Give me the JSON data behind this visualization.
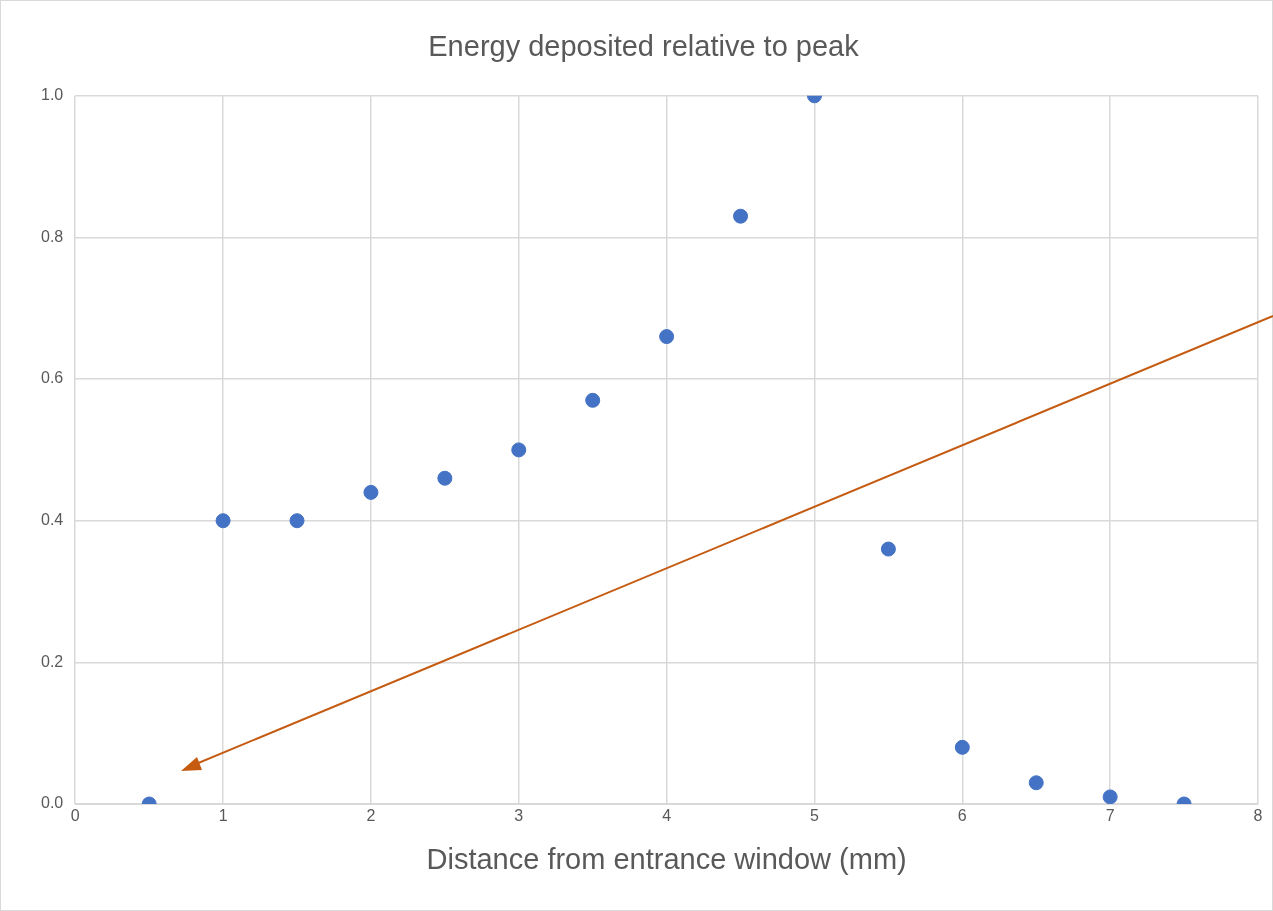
{
  "chart_data": {
    "type": "scatter",
    "title": "Energy deposited relative to peak",
    "xlabel": "Distance from entrance window (mm)",
    "x": [
      0.5,
      1,
      1.5,
      2,
      2.5,
      3,
      3.5,
      4,
      4.5,
      5,
      5.5,
      6,
      6.5,
      7,
      7.5
    ],
    "series": [
      {
        "color": "#4472c4",
        "values": [
          0.0,
          0.4,
          0.4,
          0.44,
          0.46,
          0.5,
          0.57,
          0.66,
          0.83,
          1.0,
          0.36,
          0.08,
          0.03,
          0.01,
          0.0
        ]
      }
    ],
    "xlim": [
      0,
      8
    ],
    "xticks": [
      0,
      1,
      2,
      3,
      4,
      5,
      6,
      7,
      8
    ],
    "ylim": [
      0,
      1
    ],
    "yticks": [
      {
        "value": 0,
        "label": "0.0"
      },
      0.2,
      0.4,
      0.6,
      0.8,
      {
        "value": 1,
        "label": "1.0"
      }
    ],
    "grid": true,
    "legend": false,
    "marker": "circle"
  }
}
